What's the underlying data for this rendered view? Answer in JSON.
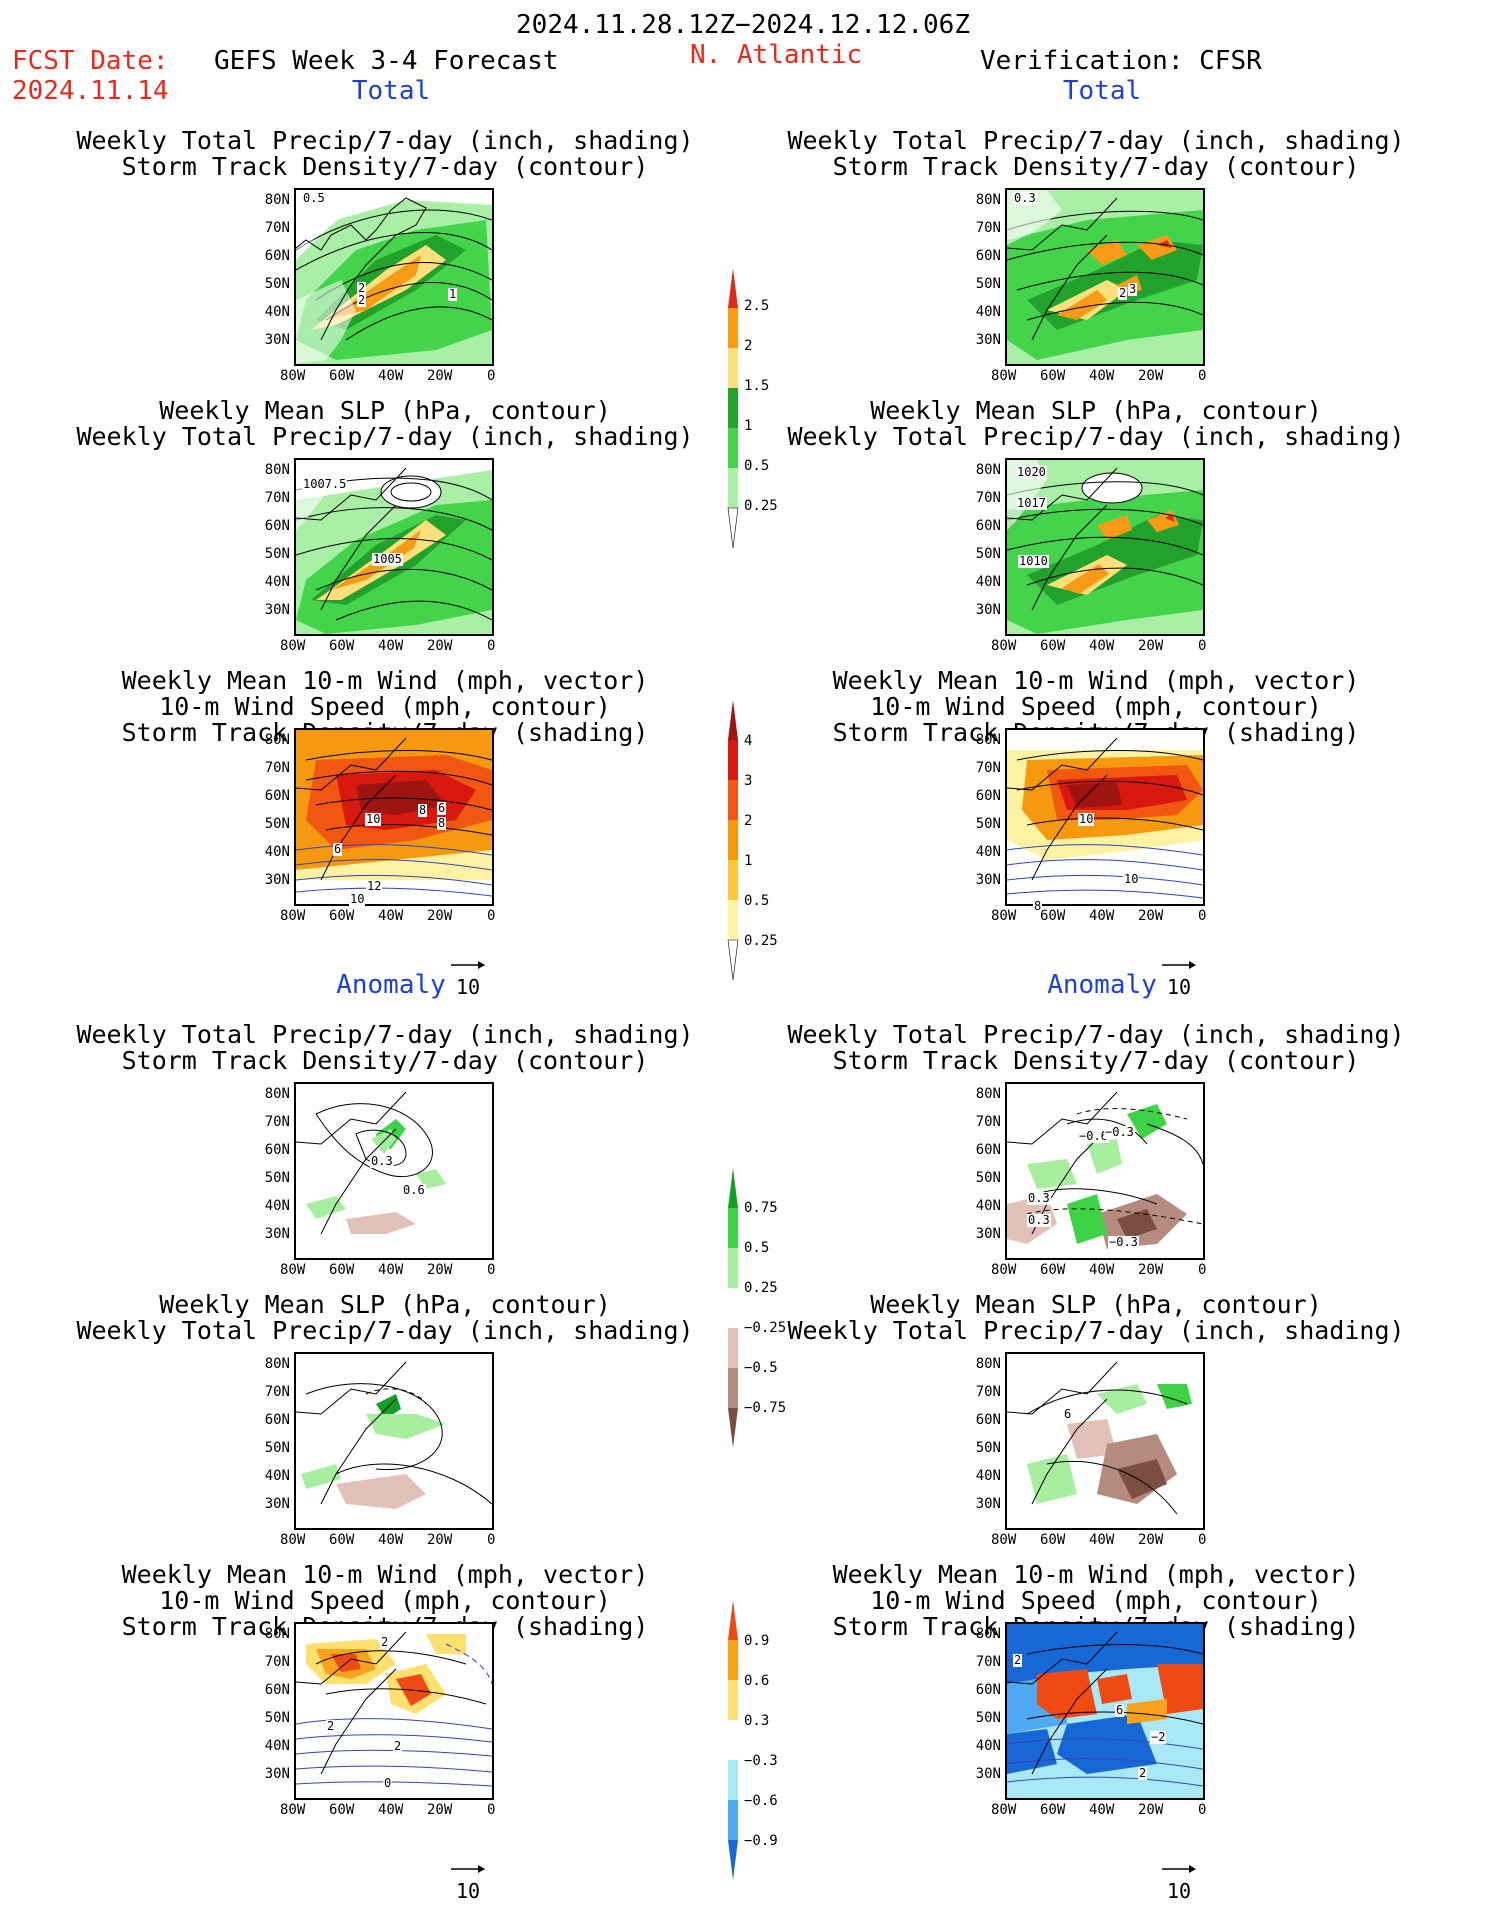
{
  "header": {
    "period": "2024.11.28.12Z−2024.12.12.06Z",
    "fcst_label": "FCST Date:",
    "fcst_date": "2024.11.14",
    "model": "GEFS Week 3-4 Forecast",
    "region": "N. Atlantic",
    "verification": "Verification: CFSR"
  },
  "sections": {
    "total": "Total",
    "anomaly": "Anomaly"
  },
  "panel_titles": {
    "precip_storm": [
      "Weekly Total Precip/7-day (inch, shading)",
      "Storm Track Density/7-day (contour)"
    ],
    "slp_precip": [
      "Weekly Mean SLP (hPa, contour)",
      "Weekly Total Precip/7-day (inch, shading)"
    ],
    "wind_storm": [
      "Weekly Mean 10-m Wind (mph, vector)",
      "10-m Wind Speed (mph, contour)",
      "Storm Track Density/7-day (shading)"
    ]
  },
  "axes": {
    "lat_ticks": [
      "80N",
      "70N",
      "60N",
      "50N",
      "40N",
      "30N"
    ],
    "lon_ticks": [
      "80W",
      "60W",
      "40W",
      "20W",
      "0"
    ]
  },
  "vector_ref": "10",
  "colorbars": {
    "precip_total": {
      "labels": [
        "2.5",
        "2",
        "1.5",
        "1",
        "0.5",
        "0.25"
      ],
      "colors": [
        "#e02a12",
        "#f79a16",
        "#fbe07c",
        "#22a12c",
        "#44d44c",
        "#a9efa6"
      ]
    },
    "storm_total": {
      "labels": [
        "4",
        "3",
        "2",
        "1",
        "0.5",
        "0.25"
      ],
      "colors": [
        "#9e1410",
        "#d8170f",
        "#f25711",
        "#f7990f",
        "#fcc63d",
        "#fff3a3"
      ]
    },
    "precip_anom": {
      "labels": [
        "0.75",
        "0.5",
        "0.25",
        "−0.25",
        "−0.5",
        "−0.75"
      ],
      "colors": [
        "#13a125",
        "#3ed347",
        "#a7ef9e",
        "#ffffff",
        "#e2c2b8",
        "#b58b7f",
        "#7a4e40"
      ]
    },
    "storm_anom": {
      "labels": [
        "0.9",
        "0.6",
        "0.3",
        "−0.3",
        "−0.6",
        "−0.9"
      ],
      "colors": [
        "#f04a14",
        "#f9a21b",
        "#fde06e",
        "#ffffff",
        "#a8e8f7",
        "#4fa9f3",
        "#1867d6"
      ]
    }
  },
  "contour_labels": {
    "p1": [
      "0.5",
      "2",
      "2",
      "1"
    ],
    "p2": [
      "1007.5",
      "1005"
    ],
    "p3": [
      "10",
      "8",
      "6",
      "8",
      "6",
      "12",
      "10"
    ],
    "p4": [
      "0.3",
      "2",
      "3"
    ],
    "p5": [
      "1020",
      "1017",
      "1010"
    ],
    "p6": [
      "10",
      "10",
      "8"
    ],
    "a1": [
      "0.3",
      "0.6"
    ],
    "a4": [
      "−0.6",
      "−0.3",
      "−0.3",
      "0.3",
      "0.3"
    ],
    "a5": [
      "6"
    ],
    "a3": [
      "2",
      "2",
      "2",
      "0"
    ],
    "a6": [
      "2",
      "6",
      "−2",
      "2"
    ]
  }
}
